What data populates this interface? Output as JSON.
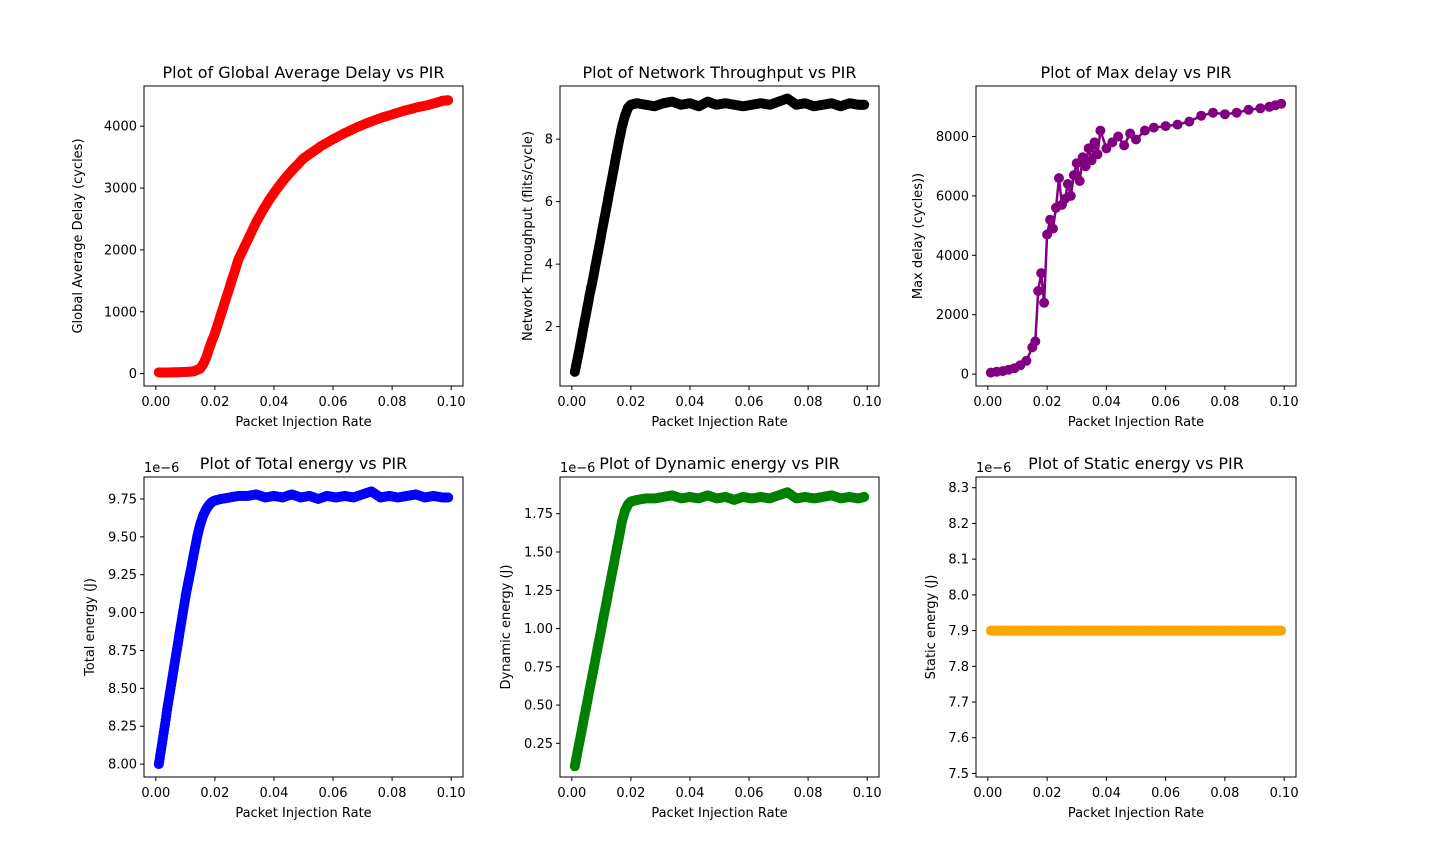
{
  "chart_data": [
    {
      "type": "scatter",
      "title": "Plot of Global Average Delay vs PIR",
      "xlabel": "Packet Injection Rate",
      "ylabel": "Global Average Delay (cycles)",
      "xlim": [
        -0.004,
        0.104
      ],
      "ylim": [
        -200,
        4650
      ],
      "xticks": [
        "0.00",
        "0.02",
        "0.04",
        "0.06",
        "0.08",
        "0.10"
      ],
      "yticks": [
        "0",
        "1000",
        "2000",
        "3000",
        "4000"
      ],
      "offset_text": "",
      "connected": false,
      "color": "#ff0000",
      "series": [
        {
          "x": [
            0.001,
            0.003,
            0.005,
            0.007,
            0.009,
            0.011,
            0.013,
            0.015,
            0.016,
            0.017,
            0.018,
            0.019,
            0.02,
            0.021,
            0.022,
            0.023,
            0.024,
            0.025,
            0.026,
            0.027,
            0.028,
            0.03,
            0.032,
            0.034,
            0.036,
            0.038,
            0.04,
            0.042,
            0.044,
            0.046,
            0.048,
            0.05,
            0.053,
            0.056,
            0.06,
            0.064,
            0.068,
            0.072,
            0.076,
            0.08,
            0.084,
            0.088,
            0.092,
            0.095,
            0.097,
            0.099
          ],
          "y": [
            20,
            18,
            20,
            22,
            25,
            30,
            40,
            80,
            150,
            250,
            400,
            530,
            650,
            800,
            950,
            1100,
            1250,
            1400,
            1550,
            1700,
            1850,
            2050,
            2250,
            2450,
            2620,
            2780,
            2920,
            3050,
            3170,
            3280,
            3380,
            3480,
            3580,
            3680,
            3790,
            3890,
            3980,
            4060,
            4130,
            4190,
            4250,
            4300,
            4340,
            4380,
            4410,
            4420
          ]
        }
      ]
    },
    {
      "type": "scatter",
      "title": "Plot of Network Throughput vs PIR",
      "xlabel": "Packet Injection Rate",
      "ylabel": "Network Throughput (flits/cycle)",
      "xlim": [
        -0.004,
        0.104
      ],
      "ylim": [
        0.1,
        9.7
      ],
      "xticks": [
        "0.00",
        "0.02",
        "0.04",
        "0.06",
        "0.08",
        "0.10"
      ],
      "yticks": [
        "2",
        "4",
        "6",
        "8"
      ],
      "offset_text": "",
      "connected": false,
      "color": "#000000",
      "series": [
        {
          "x": [
            0.001,
            0.002,
            0.003,
            0.004,
            0.005,
            0.006,
            0.007,
            0.008,
            0.009,
            0.01,
            0.011,
            0.012,
            0.013,
            0.014,
            0.015,
            0.016,
            0.017,
            0.018,
            0.019,
            0.02,
            0.022,
            0.025,
            0.028,
            0.031,
            0.034,
            0.037,
            0.04,
            0.043,
            0.046,
            0.049,
            0.052,
            0.055,
            0.058,
            0.061,
            0.064,
            0.067,
            0.07,
            0.073,
            0.076,
            0.079,
            0.082,
            0.085,
            0.088,
            0.091,
            0.094,
            0.097,
            0.099
          ],
          "y": [
            0.55,
            1.0,
            1.5,
            2.0,
            2.5,
            3.0,
            3.45,
            3.95,
            4.45,
            4.95,
            5.45,
            5.95,
            6.45,
            6.95,
            7.45,
            7.95,
            8.4,
            8.75,
            9.0,
            9.1,
            9.15,
            9.1,
            9.05,
            9.15,
            9.2,
            9.1,
            9.15,
            9.05,
            9.2,
            9.1,
            9.15,
            9.1,
            9.05,
            9.1,
            9.15,
            9.1,
            9.2,
            9.3,
            9.1,
            9.15,
            9.05,
            9.1,
            9.15,
            9.05,
            9.15,
            9.1,
            9.1
          ]
        }
      ]
    },
    {
      "type": "line",
      "title": "Plot of Max delay vs PIR",
      "xlabel": "Packet Injection Rate",
      "ylabel": "Max delay (cycles))",
      "xlim": [
        -0.004,
        0.104
      ],
      "ylim": [
        -400,
        9700
      ],
      "xticks": [
        "0.00",
        "0.02",
        "0.04",
        "0.06",
        "0.08",
        "0.10"
      ],
      "yticks": [
        "0",
        "2000",
        "4000",
        "6000",
        "8000"
      ],
      "offset_text": "",
      "connected": true,
      "color": "#800080",
      "series": [
        {
          "x": [
            0.001,
            0.003,
            0.005,
            0.007,
            0.009,
            0.011,
            0.013,
            0.015,
            0.016,
            0.017,
            0.018,
            0.019,
            0.02,
            0.021,
            0.022,
            0.023,
            0.024,
            0.025,
            0.026,
            0.027,
            0.028,
            0.029,
            0.03,
            0.031,
            0.032,
            0.033,
            0.034,
            0.035,
            0.036,
            0.037,
            0.038,
            0.04,
            0.042,
            0.044,
            0.046,
            0.048,
            0.05,
            0.053,
            0.056,
            0.06,
            0.064,
            0.068,
            0.072,
            0.076,
            0.08,
            0.084,
            0.088,
            0.092,
            0.095,
            0.097,
            0.099
          ],
          "y": [
            50,
            80,
            100,
            150,
            200,
            300,
            450,
            900,
            1100,
            2800,
            3400,
            2400,
            4700,
            5200,
            4900,
            5600,
            6600,
            5700,
            5900,
            6400,
            6000,
            6700,
            7100,
            6500,
            7300,
            7000,
            7600,
            7200,
            7800,
            7400,
            8200,
            7600,
            7800,
            8000,
            7700,
            8100,
            7900,
            8200,
            8300,
            8350,
            8400,
            8500,
            8700,
            8800,
            8750,
            8800,
            8900,
            8950,
            9000,
            9050,
            9100
          ]
        }
      ]
    },
    {
      "type": "scatter",
      "title": "Plot of Total energy vs PIR",
      "xlabel": "Packet Injection Rate",
      "ylabel": "Total energy (J)",
      "xlim": [
        -0.004,
        0.104
      ],
      "ylim": [
        7.915,
        9.895
      ],
      "xticks": [
        "0.00",
        "0.02",
        "0.04",
        "0.06",
        "0.08",
        "0.10"
      ],
      "yticks": [
        "8.00",
        "8.25",
        "8.50",
        "8.75",
        "9.00",
        "9.25",
        "9.50",
        "9.75"
      ],
      "offset_text": "1e−6",
      "connected": false,
      "color": "#0000ff",
      "series": [
        {
          "x": [
            0.001,
            0.002,
            0.003,
            0.004,
            0.005,
            0.006,
            0.007,
            0.008,
            0.009,
            0.01,
            0.011,
            0.012,
            0.013,
            0.014,
            0.015,
            0.016,
            0.017,
            0.018,
            0.019,
            0.02,
            0.022,
            0.025,
            0.028,
            0.031,
            0.034,
            0.037,
            0.04,
            0.043,
            0.046,
            0.049,
            0.052,
            0.055,
            0.058,
            0.061,
            0.064,
            0.067,
            0.07,
            0.073,
            0.076,
            0.079,
            0.082,
            0.085,
            0.088,
            0.091,
            0.094,
            0.097,
            0.099
          ],
          "y": [
            8.0,
            8.12,
            8.25,
            8.38,
            8.5,
            8.62,
            8.74,
            8.86,
            8.98,
            9.1,
            9.2,
            9.3,
            9.4,
            9.5,
            9.58,
            9.64,
            9.68,
            9.71,
            9.73,
            9.74,
            9.75,
            9.76,
            9.77,
            9.77,
            9.78,
            9.76,
            9.77,
            9.76,
            9.78,
            9.76,
            9.77,
            9.75,
            9.77,
            9.76,
            9.77,
            9.76,
            9.78,
            9.8,
            9.76,
            9.77,
            9.76,
            9.77,
            9.78,
            9.76,
            9.77,
            9.76,
            9.76
          ]
        }
      ]
    },
    {
      "type": "scatter",
      "title": "Plot of Dynamic energy vs PIR",
      "xlabel": "Packet Injection Rate",
      "ylabel": "Dynamic energy (J)",
      "xlim": [
        -0.004,
        0.104
      ],
      "ylim": [
        0.03,
        1.99
      ],
      "xticks": [
        "0.00",
        "0.02",
        "0.04",
        "0.06",
        "0.08",
        "0.10"
      ],
      "yticks": [
        "0.25",
        "0.50",
        "0.75",
        "1.00",
        "1.25",
        "1.50",
        "1.75"
      ],
      "offset_text": "1e−6",
      "connected": false,
      "color": "#008000",
      "series": [
        {
          "x": [
            0.001,
            0.002,
            0.003,
            0.004,
            0.005,
            0.006,
            0.007,
            0.008,
            0.009,
            0.01,
            0.011,
            0.012,
            0.013,
            0.014,
            0.015,
            0.016,
            0.017,
            0.018,
            0.019,
            0.02,
            0.022,
            0.025,
            0.028,
            0.031,
            0.034,
            0.037,
            0.04,
            0.043,
            0.046,
            0.049,
            0.052,
            0.055,
            0.058,
            0.061,
            0.064,
            0.067,
            0.07,
            0.073,
            0.076,
            0.079,
            0.082,
            0.085,
            0.088,
            0.091,
            0.094,
            0.097,
            0.099
          ],
          "y": [
            0.1,
            0.2,
            0.3,
            0.4,
            0.5,
            0.6,
            0.7,
            0.8,
            0.9,
            1.0,
            1.1,
            1.2,
            1.3,
            1.4,
            1.5,
            1.6,
            1.7,
            1.77,
            1.81,
            1.83,
            1.84,
            1.85,
            1.85,
            1.86,
            1.87,
            1.85,
            1.86,
            1.85,
            1.87,
            1.85,
            1.86,
            1.84,
            1.86,
            1.85,
            1.86,
            1.85,
            1.87,
            1.89,
            1.85,
            1.86,
            1.85,
            1.86,
            1.87,
            1.85,
            1.86,
            1.85,
            1.86
          ]
        }
      ]
    },
    {
      "type": "scatter",
      "title": "Plot of Static energy vs PIR",
      "xlabel": "Packet Injection Rate",
      "ylabel": "Static energy (J)",
      "xlim": [
        -0.004,
        0.104
      ],
      "ylim": [
        7.49,
        8.33
      ],
      "xticks": [
        "0.00",
        "0.02",
        "0.04",
        "0.06",
        "0.08",
        "0.10"
      ],
      "yticks": [
        "7.5",
        "7.6",
        "7.7",
        "7.8",
        "7.9",
        "8.0",
        "8.1",
        "8.2",
        "8.3"
      ],
      "offset_text": "1e−6",
      "connected": false,
      "color": "#ffa500",
      "series": [
        {
          "x": [
            0.001,
            0.004,
            0.007,
            0.01,
            0.013,
            0.016,
            0.019,
            0.022,
            0.025,
            0.028,
            0.031,
            0.034,
            0.037,
            0.04,
            0.043,
            0.046,
            0.049,
            0.052,
            0.055,
            0.058,
            0.061,
            0.064,
            0.067,
            0.07,
            0.073,
            0.076,
            0.079,
            0.082,
            0.085,
            0.088,
            0.091,
            0.094,
            0.097,
            0.099
          ],
          "y": [
            7.9,
            7.9,
            7.9,
            7.9,
            7.9,
            7.9,
            7.9,
            7.9,
            7.9,
            7.9,
            7.9,
            7.9,
            7.9,
            7.9,
            7.9,
            7.9,
            7.9,
            7.9,
            7.9,
            7.9,
            7.9,
            7.9,
            7.9,
            7.9,
            7.9,
            7.9,
            7.9,
            7.9,
            7.9,
            7.9,
            7.9,
            7.9,
            7.9,
            7.9
          ]
        }
      ]
    }
  ]
}
